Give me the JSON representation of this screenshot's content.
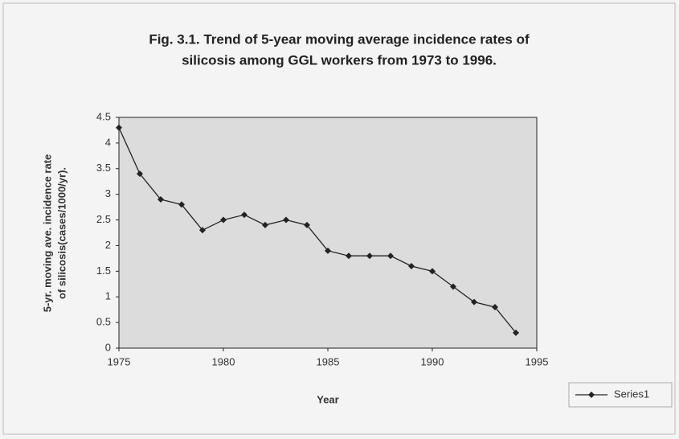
{
  "chart_data": {
    "type": "line",
    "title": [
      "Fig. 3.1. Trend of 5-year moving average incidence rates of",
      "silicosis among GGL workers from 1973 to 1996."
    ],
    "x_label": "Year",
    "y_label": [
      "5-yr. moving ave. incidence rate",
      "of silicosis(cases/1000/yr)."
    ],
    "x": [
      1975,
      1976,
      1977,
      1978,
      1979,
      1980,
      1981,
      1982,
      1983,
      1984,
      1985,
      1986,
      1987,
      1988,
      1989,
      1990,
      1991,
      1992,
      1993,
      1994
    ],
    "series": [
      {
        "name": "Series1",
        "color": "#222222",
        "values": [
          4.3,
          3.4,
          2.9,
          2.8,
          2.3,
          2.5,
          2.6,
          2.4,
          2.5,
          2.4,
          1.9,
          1.8,
          1.8,
          1.8,
          1.6,
          1.5,
          1.2,
          0.9,
          0.8,
          0.3
        ]
      }
    ],
    "xlim": [
      1975,
      1995
    ],
    "xticks": [
      1975,
      1980,
      1985,
      1990,
      1995
    ],
    "ylim": [
      0,
      4.5
    ],
    "yticks": [
      0,
      0.5,
      1,
      1.5,
      2,
      2.5,
      3,
      3.5,
      4,
      4.5
    ],
    "legend": "bottom-right"
  }
}
